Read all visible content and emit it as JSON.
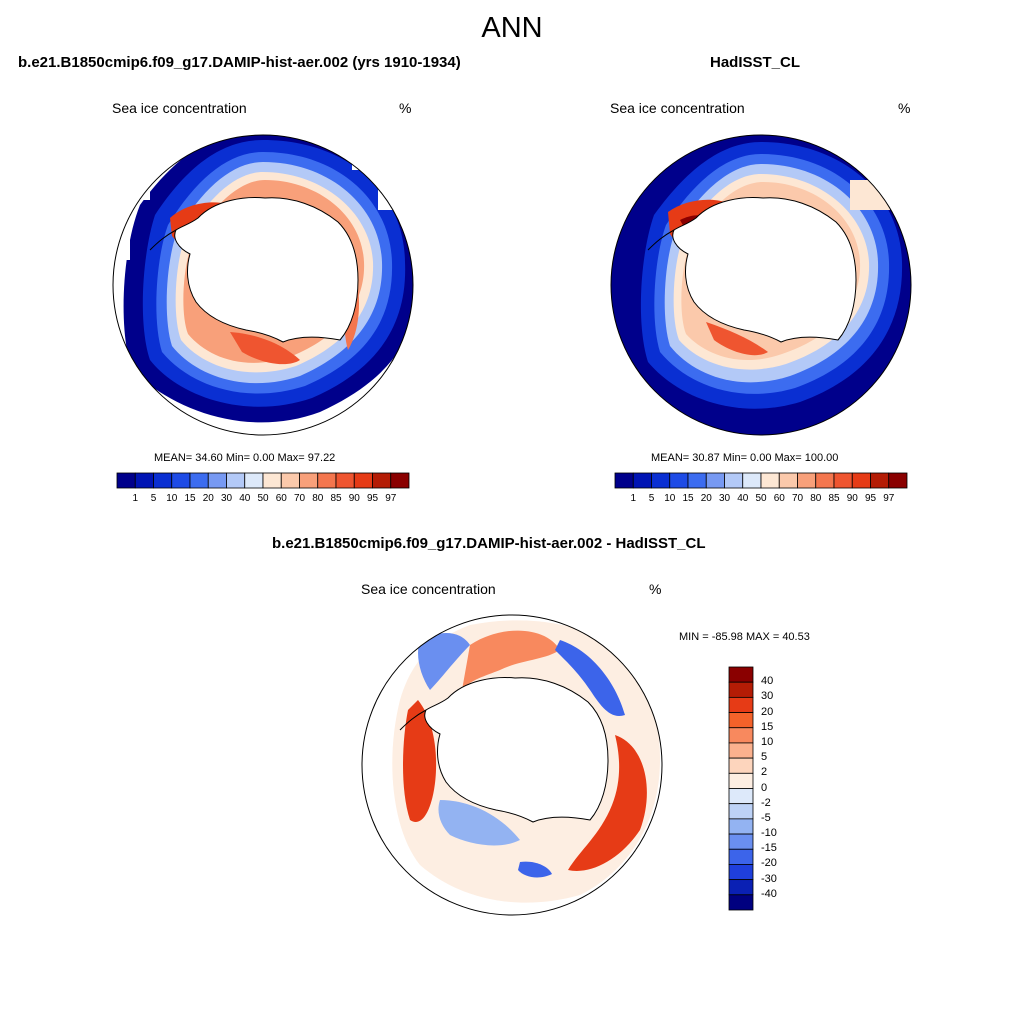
{
  "header": {
    "title": "ANN"
  },
  "panels": [
    {
      "title": "b.e21.B1850cmip6.f09_g17.DAMIP-hist-aer.002 (yrs 1910-1934)",
      "variable": "Sea ice concentration",
      "units": "%",
      "stats": {
        "mean": "34.60",
        "min": "0.00",
        "max": "97.22"
      },
      "stats_text": "MEAN=  34.60  Min=   0.00  Max=  97.22"
    },
    {
      "title": "HadISST_CL",
      "variable": "Sea ice concentration",
      "units": "%",
      "stats": {
        "mean": "30.87",
        "min": "0.00",
        "max": "100.00"
      },
      "stats_text": "MEAN=  30.87  Min=   0.00  Max= 100.00"
    },
    {
      "title": "b.e21.B1850cmip6.f09_g17.DAMIP-hist-aer.002 - HadISST_CL",
      "variable": "Sea ice concentration",
      "units": "%",
      "stats": {
        "min": "-85.98",
        "max": "40.53"
      },
      "stats_text": "MIN = -85.98 MAX =  40.53"
    }
  ],
  "chart_data": [
    {
      "type": "heatmap",
      "projection": "south-polar-stereographic",
      "title": "b.e21.B1850cmip6.f09_g17.DAMIP-hist-aer.002 (yrs 1910-1934)",
      "field": "Sea ice concentration",
      "units": "%",
      "mean": 34.6,
      "min": 0.0,
      "max": 97.22,
      "colorbar_levels": [
        1,
        5,
        10,
        15,
        20,
        30,
        40,
        50,
        60,
        70,
        80,
        85,
        90,
        95,
        97
      ],
      "colorbar_labels": [
        "1",
        "5",
        "10",
        "15",
        "20",
        "30",
        "40",
        "50",
        "60",
        "70",
        "80",
        "85",
        "90",
        "95",
        "97"
      ],
      "colors": [
        "#00008b",
        "#0014b4",
        "#0a2fd2",
        "#1e4be6",
        "#3c6cf0",
        "#7799f2",
        "#b3c9f7",
        "#dde9fa",
        "#fde7d4",
        "#fbc9ab",
        "#f8a07a",
        "#f4764e",
        "#ef5530",
        "#e63b16",
        "#b41c05",
        "#8a0000"
      ]
    },
    {
      "type": "heatmap",
      "projection": "south-polar-stereographic",
      "title": "HadISST_CL",
      "field": "Sea ice concentration",
      "units": "%",
      "mean": 30.87,
      "min": 0.0,
      "max": 100.0,
      "colorbar_levels": [
        1,
        5,
        10,
        15,
        20,
        30,
        40,
        50,
        60,
        70,
        80,
        85,
        90,
        95,
        97
      ],
      "colorbar_labels": [
        "1",
        "5",
        "10",
        "15",
        "20",
        "30",
        "40",
        "50",
        "60",
        "70",
        "80",
        "85",
        "90",
        "95",
        "97"
      ],
      "colors": [
        "#00008b",
        "#0014b4",
        "#0a2fd2",
        "#1e4be6",
        "#3c6cf0",
        "#7799f2",
        "#b3c9f7",
        "#dde9fa",
        "#fde7d4",
        "#fbc9ab",
        "#f8a07a",
        "#f4764e",
        "#ef5530",
        "#e63b16",
        "#b41c05",
        "#8a0000"
      ]
    },
    {
      "type": "heatmap",
      "projection": "south-polar-stereographic",
      "title": "b.e21.B1850cmip6.f09_g17.DAMIP-hist-aer.002 - HadISST_CL",
      "field": "Sea ice concentration",
      "units": "%",
      "min": -85.98,
      "max": 40.53,
      "colorbar_levels": [
        40,
        30,
        20,
        15,
        10,
        5,
        2,
        0,
        -2,
        -5,
        -10,
        -15,
        -20,
        -30,
        -40
      ],
      "colorbar_labels": [
        "40",
        "30",
        "20",
        "15",
        "10",
        "5",
        "2",
        "0",
        "-2",
        "-5",
        "-10",
        "-15",
        "-20",
        "-30",
        "-40"
      ],
      "colors": [
        "#8a0000",
        "#b41c05",
        "#e63b16",
        "#f4622a",
        "#f8895e",
        "#fbb18e",
        "#fdd5bd",
        "#fdeee2",
        "#dde9fa",
        "#bdd2f6",
        "#93b3f2",
        "#6a8ff0",
        "#3c64ea",
        "#1f3fdc",
        "#0a20b4",
        "#000080"
      ]
    }
  ]
}
